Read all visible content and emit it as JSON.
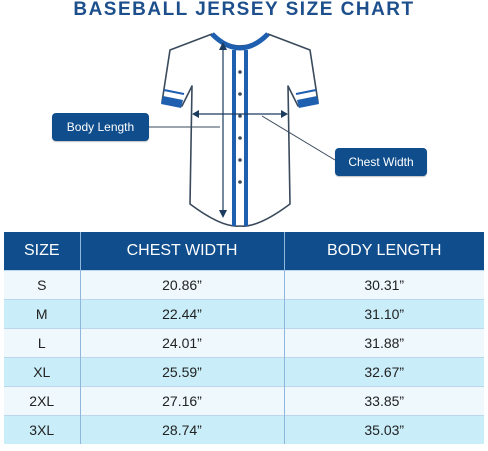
{
  "title": "BASEBALL JERSEY SIZE CHART",
  "callouts": {
    "body_length": "Body Length",
    "chest_width": "Chest Width"
  },
  "colors": {
    "primary": "#0f4d8c",
    "title": "#1d4f8c",
    "row_light": "#eef8fd",
    "row_alt": "#c9eefa",
    "jersey_trim": "#1e5fb0"
  },
  "table": {
    "headers": [
      "SIZE",
      "CHEST WIDTH",
      "BODY LENGTH"
    ],
    "rows": [
      [
        "S",
        "20.86”",
        "30.31”"
      ],
      [
        "M",
        "22.44”",
        "31.10”"
      ],
      [
        "L",
        "24.01”",
        "31.88”"
      ],
      [
        "XL",
        "25.59”",
        "32.67”"
      ],
      [
        "2XL",
        "27.16”",
        "33.85”"
      ],
      [
        "3XL",
        "28.74”",
        "35.03”"
      ]
    ]
  }
}
